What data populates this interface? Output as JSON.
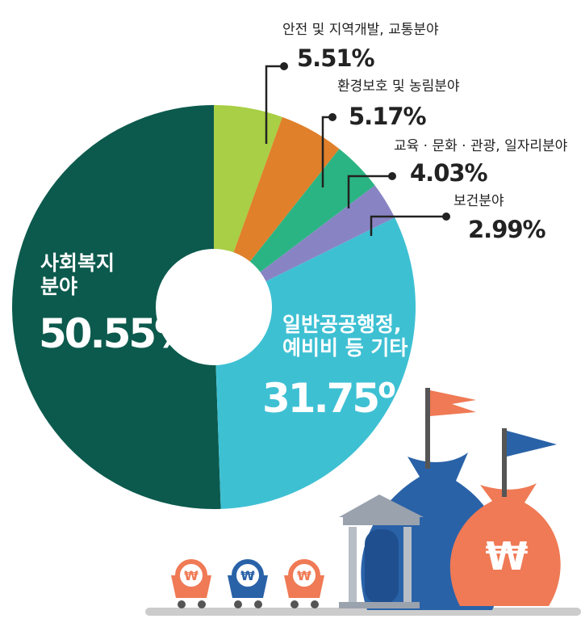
{
  "chart_data": {
    "type": "pie",
    "categories": [
      "안전 및 지역개발, 교통분야",
      "환경보호 및 농림분야",
      "교육 · 문화 · 관광, 일자리분야",
      "보건분야",
      "일반공공행정, 예비비 등 기타",
      "사회복지 분야"
    ],
    "values": [
      5.51,
      5.17,
      4.03,
      2.99,
      31.75,
      50.55
    ],
    "value_labels": [
      "5.51%",
      "5.17%",
      "4.03%",
      "2.99%",
      "31.75%",
      "50.55%"
    ],
    "colors": [
      "#a8cf45",
      "#e0802b",
      "#2bb483",
      "#8884c4",
      "#3ec0d3",
      "#0c5a4d"
    ]
  }
}
